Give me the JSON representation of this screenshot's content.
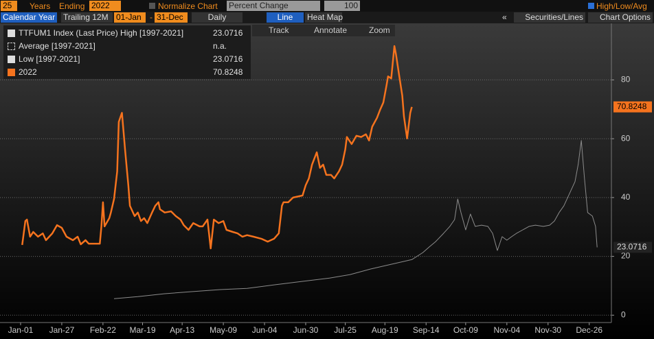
{
  "toolbar": {
    "years": "25",
    "years_label": "Years",
    "ending_label": "Ending",
    "ending": "2022",
    "normalize": "Normalize Chart",
    "mode": "Percent Change",
    "base": "100",
    "high_low_avg": "High/Low/Avg",
    "calendar_year": "Calendar Year",
    "trailing": "Trailing 12M",
    "start": "01-Jan",
    "dash": "-",
    "end": "31-Dec",
    "frequency": "Daily",
    "line": "Line",
    "heat_map": "Heat Map",
    "collapse": "«",
    "securities": "Securities/Lines",
    "chart_options": "Chart Options",
    "track": "Track",
    "annotate": "Annotate",
    "zoom": "Zoom"
  },
  "chart_data": {
    "type": "line",
    "legend_rows": [
      {
        "text": "TTFUM1 Index (Last Price) High [1997-2021]",
        "value": 23.0716
      },
      {
        "text": "Average [1997-2021]",
        "value_label": "n.a."
      }
    ],
    "series": [
      {
        "name": "2022",
        "color": "#f5731e",
        "x": [
          1,
          3,
          4,
          6,
          8,
          11,
          14,
          16,
          20,
          23,
          26,
          29,
          33,
          36,
          38,
          41,
          43,
          46,
          48,
          50,
          51,
          52,
          53,
          56,
          57,
          59,
          61,
          62,
          64,
          66,
          68,
          69,
          72,
          74,
          76,
          78,
          80,
          83,
          85,
          87,
          88,
          91,
          95,
          98,
          101,
          103,
          106,
          109,
          113,
          115,
          118,
          120,
          122,
          125,
          128,
          130,
          134,
          137,
          140,
          143,
          147,
          152,
          156,
          160,
          163,
          165,
          166,
          169,
          172,
          178,
          180,
          182,
          184,
          187,
          189,
          191,
          193,
          196,
          198,
          201,
          203,
          205,
          206,
          209,
          212,
          215,
          218,
          220,
          222,
          225,
          227,
          229,
          231,
          232,
          234,
          236,
          237,
          239,
          241,
          242,
          244,
          246,
          247
        ],
        "values": [
          23.9,
          32,
          32.5,
          26.7,
          28.3,
          26.7,
          27.8,
          25.5,
          27.8,
          30.6,
          29.7,
          26.7,
          25.5,
          26.7,
          24.1,
          25.5,
          24.3,
          24.3,
          24.3,
          24.3,
          30.2,
          38.4,
          30.2,
          33,
          34.9,
          39.5,
          48.9,
          65.7,
          68.8,
          55.9,
          44.2,
          37.2,
          33.7,
          34.9,
          32,
          33,
          31.3,
          34.9,
          37.2,
          38.4,
          36,
          34.9,
          35.3,
          33.7,
          32.5,
          30.6,
          29,
          31.3,
          30.2,
          30.2,
          32.5,
          22.7,
          32.5,
          31.3,
          32,
          29,
          28.3,
          27.8,
          26.7,
          27.2,
          26.7,
          26,
          25,
          26,
          27.8,
          37.2,
          38.4,
          38.4,
          40,
          40.7,
          44.2,
          46.5,
          51.2,
          55.4,
          50.1,
          51.2,
          47.7,
          47.7,
          46.5,
          48.9,
          51.2,
          56.4,
          60.6,
          58.2,
          61,
          60.6,
          61.5,
          59.4,
          64.1,
          67.1,
          69.9,
          72.3,
          78.1,
          81.2,
          80.5,
          91.5,
          88.7,
          81.6,
          74.6,
          67.6,
          60.1,
          68.8,
          70.8248
        ]
      },
      {
        "name": "Low [1997-2021]",
        "color": "#8c8c8c",
        "x": [
          59,
          74,
          91,
          108,
          126,
          143,
          160,
          178,
          195,
          208,
          221,
          234,
          247,
          254,
          258,
          262,
          267,
          271,
          274,
          276,
          278,
          281,
          284,
          287,
          291,
          295,
          298,
          301,
          304,
          307,
          310,
          313,
          317,
          321,
          325,
          330,
          334,
          337,
          340,
          343,
          347,
          350,
          352,
          354,
          356,
          358,
          361,
          363,
          364
        ],
        "values": [
          5.6,
          6.3,
          7.3,
          8,
          8.7,
          9.1,
          10.3,
          11.5,
          12.6,
          13.8,
          15.7,
          17.3,
          18.9,
          21.3,
          23.2,
          25,
          27.8,
          30.2,
          32.5,
          39.5,
          34.9,
          29,
          34.4,
          30.2,
          30.6,
          30.2,
          27.8,
          22,
          26.7,
          25.5,
          26.7,
          27.8,
          29,
          30.2,
          30.6,
          30.2,
          30.6,
          32,
          34.9,
          37.2,
          41.9,
          45.4,
          51.2,
          59.4,
          46.5,
          34.9,
          33.7,
          30.2,
          23.0716
        ]
      }
    ],
    "xlim": [
      -13,
      373
    ],
    "xticks": [
      {
        "value": 0,
        "label": "Jan-01"
      },
      {
        "value": 26,
        "label": "Jan-27"
      },
      {
        "value": 52,
        "label": "Feb-22"
      },
      {
        "value": 77,
        "label": "Mar-19"
      },
      {
        "value": 102,
        "label": "Apr-13"
      },
      {
        "value": 128,
        "label": "May-09"
      },
      {
        "value": 154,
        "label": "Jun-04"
      },
      {
        "value": 180,
        "label": "Jun-30"
      },
      {
        "value": 205,
        "label": "Jul-25"
      },
      {
        "value": 230,
        "label": "Aug-19"
      },
      {
        "value": 256,
        "label": "Sep-14"
      },
      {
        "value": 281,
        "label": "Oct-09"
      },
      {
        "value": 307,
        "label": "Nov-04"
      },
      {
        "value": 333,
        "label": "Nov-30"
      },
      {
        "value": 359,
        "label": "Dec-26"
      }
    ],
    "ylim": [
      -2.5,
      99
    ],
    "yticks": [
      0,
      20,
      40,
      60,
      80
    ],
    "grid": true
  }
}
